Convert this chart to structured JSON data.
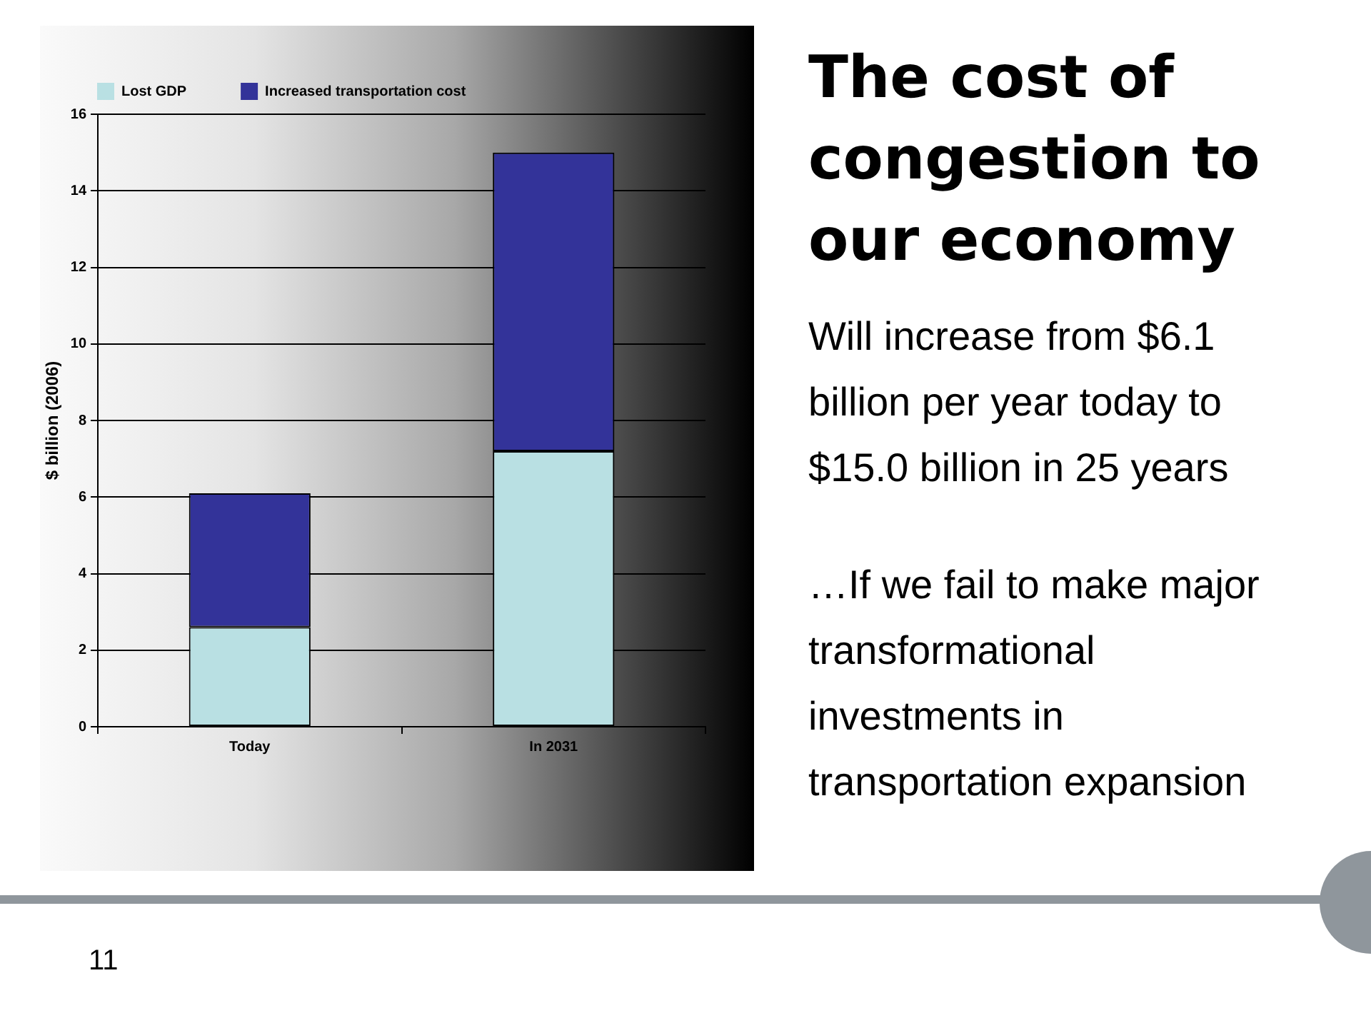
{
  "chart_data": {
    "type": "bar",
    "title": "The cost of congestion to our economy",
    "categories": [
      "Today",
      "In 2031"
    ],
    "series": [
      {
        "name": "Lost GDP",
        "color": "#b9e0e3",
        "values": [
          2.6,
          7.2
        ]
      },
      {
        "name": "Increased transportation cost",
        "color": "#333399",
        "values": [
          3.5,
          7.8
        ]
      }
    ],
    "stacked": true,
    "ylabel": "$ billion (2006)",
    "ylim": [
      0,
      16
    ],
    "yticks": [
      0,
      2,
      4,
      6,
      8,
      10,
      12,
      14,
      16
    ],
    "grid": "y",
    "legend": "top left",
    "annotations": [
      "Will increase from $6.1 billion per year today to $15.0 billion in 25 years",
      "…If we fail to make major transformational investments in transportation expansion",
      "11"
    ]
  }
}
